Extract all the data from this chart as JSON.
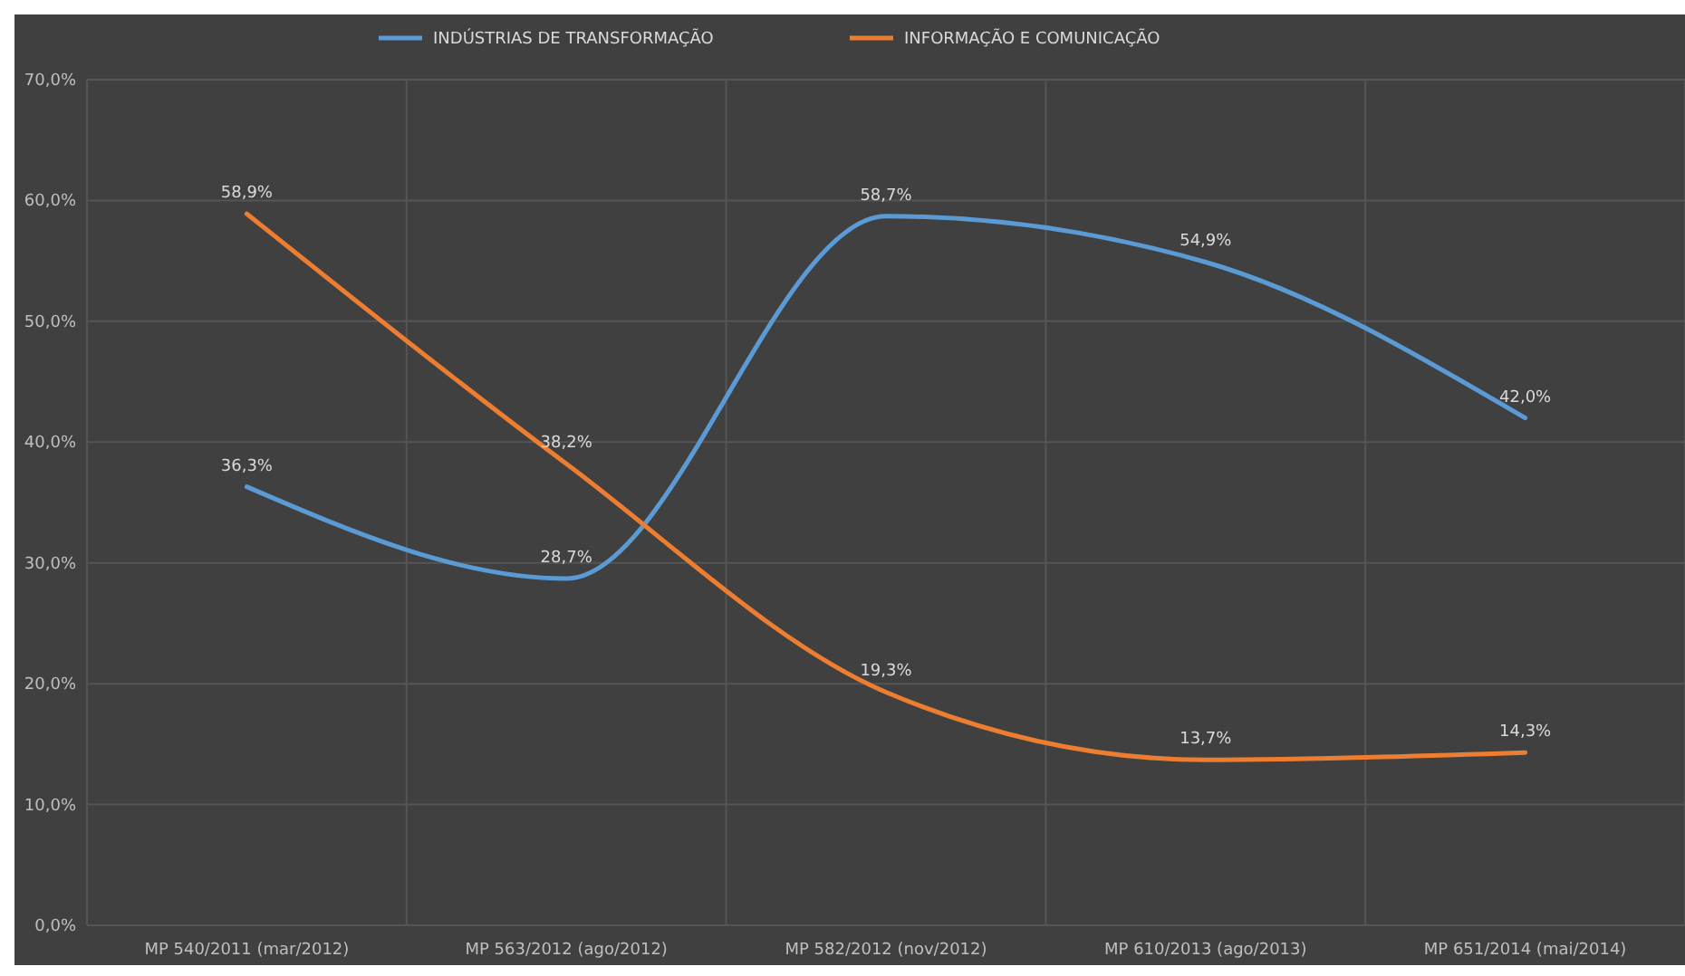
{
  "chart_data": {
    "type": "line",
    "categories": [
      "MP 540/2011 (mar/2012)",
      "MP 563/2012 (ago/2012)",
      "MP 582/2012 (nov/2012)",
      "MP 610/2013 (ago/2013)",
      "MP 651/2014 (mai/2014)"
    ],
    "series": [
      {
        "name": "INDÚSTRIAS DE TRANSFORMAÇÃO",
        "color": "#5b9bd5",
        "values": [
          36.3,
          28.7,
          58.7,
          54.9,
          42.0
        ],
        "value_labels": [
          "36,3%",
          "28,7%",
          "58,7%",
          "54,9%",
          "42,0%"
        ]
      },
      {
        "name": "INFORMAÇÃO E COMUNICAÇÃO",
        "color": "#ed7d31",
        "values": [
          58.9,
          38.2,
          19.3,
          13.7,
          14.3
        ],
        "value_labels": [
          "58,9%",
          "38,2%",
          "19,3%",
          "13,7%",
          "14,3%"
        ]
      }
    ],
    "ylim": [
      0,
      70
    ],
    "yticks": [
      {
        "value": 0,
        "label": "0,0%"
      },
      {
        "value": 10,
        "label": "10,0%"
      },
      {
        "value": 20,
        "label": "20,0%"
      },
      {
        "value": 30,
        "label": "30,0%"
      },
      {
        "value": 40,
        "label": "40,0%"
      },
      {
        "value": 50,
        "label": "50,0%"
      },
      {
        "value": 60,
        "label": "60,0%"
      },
      {
        "value": 70,
        "label": "70,0%"
      }
    ],
    "grid": true,
    "legend": "top",
    "marker": "none",
    "line_style": "solid"
  }
}
